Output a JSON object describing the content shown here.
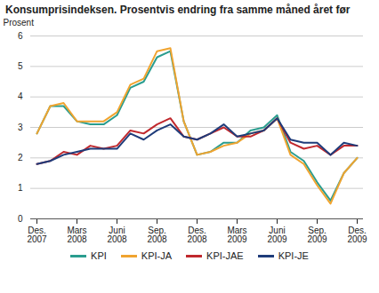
{
  "chart_data": {
    "type": "line",
    "title": "Konsumprisindeksen. Prosentvis endring fra samme måned året før",
    "y_label": "Prosent",
    "categories": [
      "Des.\n2007",
      null,
      null,
      "Mars\n2008",
      null,
      null,
      "Juni\n2008",
      null,
      null,
      "Sep.\n2008",
      null,
      null,
      "Des.\n2008",
      null,
      null,
      "Mars\n2009",
      null,
      null,
      "Juni\n2009",
      null,
      null,
      "Sep.\n2009",
      null,
      null,
      "Des.\n2009"
    ],
    "series": [
      {
        "name": "KPI",
        "color": "#2a9d8f",
        "values": [
          2.8,
          3.7,
          3.7,
          3.2,
          3.1,
          3.1,
          3.4,
          4.3,
          4.5,
          5.3,
          5.5,
          3.2,
          2.1,
          2.2,
          2.5,
          2.5,
          2.9,
          3.0,
          3.4,
          2.2,
          1.9,
          1.2,
          0.6,
          1.5,
          2.0
        ]
      },
      {
        "name": "KPI-JA",
        "color": "#f0a430",
        "values": [
          2.8,
          3.7,
          3.8,
          3.2,
          3.2,
          3.2,
          3.5,
          4.4,
          4.6,
          5.5,
          5.6,
          3.2,
          2.1,
          2.2,
          2.4,
          2.5,
          2.8,
          2.9,
          3.3,
          2.1,
          1.8,
          1.1,
          0.5,
          1.5,
          2.0
        ]
      },
      {
        "name": "KPI-JAE",
        "color": "#c0282d",
        "values": [
          1.8,
          1.9,
          2.2,
          2.1,
          2.4,
          2.3,
          2.4,
          2.9,
          2.8,
          3.1,
          3.3,
          2.7,
          2.6,
          2.8,
          3.0,
          2.7,
          2.7,
          2.9,
          3.3,
          2.5,
          2.3,
          2.4,
          2.1,
          2.4,
          2.4
        ]
      },
      {
        "name": "KPI-JE",
        "color": "#1f3c7a",
        "values": [
          1.8,
          1.9,
          2.1,
          2.2,
          2.3,
          2.3,
          2.3,
          2.8,
          2.6,
          2.9,
          3.1,
          2.7,
          2.6,
          2.8,
          3.1,
          2.7,
          2.8,
          2.9,
          3.3,
          2.6,
          2.5,
          2.5,
          2.1,
          2.5,
          2.4
        ]
      }
    ],
    "ylim": [
      0,
      6
    ],
    "yticks": [
      0,
      1,
      2,
      3,
      4,
      5,
      6
    ],
    "grid": true,
    "legend": "bottom"
  }
}
